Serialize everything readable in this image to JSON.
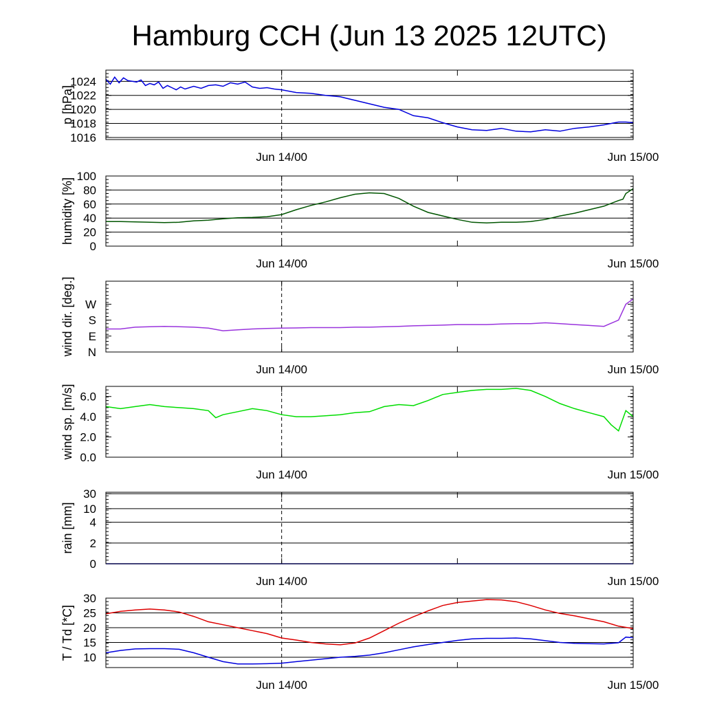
{
  "title": "Hamburg CCH (Jun 13 2025 12UTC)",
  "x_tick_labels": [
    "Jun 14/00",
    "Jun 15/00"
  ],
  "chart_data": [
    {
      "type": "line",
      "ylabel": "p [hPa]",
      "ylim": [
        1015.7,
        1025.6
      ],
      "yticks": [
        1016,
        1018,
        1020,
        1022,
        1024
      ],
      "ytick_labels": [
        "1016",
        "1018",
        "1020",
        "1022",
        "1024"
      ],
      "grid": true,
      "xlim": [
        0,
        36
      ],
      "series": [
        {
          "color": "#0000dd",
          "x": [
            0,
            0.3,
            0.6,
            0.9,
            1.2,
            1.5,
            1.8,
            2.1,
            2.4,
            2.7,
            3,
            3.3,
            3.6,
            3.9,
            4.2,
            4.5,
            4.8,
            5.1,
            5.4,
            5.7,
            6,
            6.5,
            7,
            7.5,
            8,
            8.5,
            9,
            9.5,
            10,
            10.5,
            11,
            11.5,
            12,
            13,
            14,
            15,
            16,
            17,
            18,
            19,
            20,
            21,
            22,
            23,
            24,
            25,
            26,
            27,
            28,
            29,
            30,
            31,
            32,
            33,
            34,
            35,
            35.5,
            36
          ],
          "y": [
            1024.3,
            1023.6,
            1024.6,
            1023.8,
            1024.5,
            1024.1,
            1024.0,
            1023.9,
            1024.2,
            1023.4,
            1023.7,
            1023.5,
            1023.9,
            1023.0,
            1023.4,
            1023.1,
            1022.8,
            1023.2,
            1022.9,
            1023.1,
            1023.3,
            1023.0,
            1023.4,
            1023.5,
            1023.3,
            1023.8,
            1023.6,
            1023.9,
            1023.2,
            1023.0,
            1023.1,
            1022.9,
            1022.8,
            1022.4,
            1022.3,
            1022.0,
            1021.8,
            1021.3,
            1020.8,
            1020.3,
            1020.0,
            1019.1,
            1018.8,
            1018.1,
            1017.5,
            1017.1,
            1017.0,
            1017.3,
            1016.9,
            1016.8,
            1017.1,
            1016.9,
            1017.3,
            1017.5,
            1017.8,
            1018.2,
            1018.2,
            1018.1
          ]
        }
      ]
    },
    {
      "type": "line",
      "ylabel": "humidity [%]",
      "ylim": [
        0,
        100
      ],
      "yticks": [
        0,
        20,
        40,
        60,
        80,
        100
      ],
      "ytick_labels": [
        "0",
        "20",
        "40",
        "60",
        "80",
        "100"
      ],
      "grid": true,
      "xlim": [
        0,
        36
      ],
      "series": [
        {
          "color": "#005500",
          "x": [
            0,
            1,
            2,
            3,
            4,
            5,
            6,
            7,
            8,
            9,
            10,
            11,
            12,
            13,
            14,
            15,
            16,
            17,
            18,
            19,
            20,
            21,
            22,
            23,
            24,
            25,
            26,
            27,
            28,
            29,
            30,
            31,
            32,
            33,
            34,
            34.5,
            35,
            35.3,
            35.5,
            36
          ],
          "y": [
            35,
            35,
            34.5,
            34,
            33.5,
            34,
            36,
            37,
            39,
            40.5,
            41,
            42,
            45,
            52,
            58,
            63,
            69,
            74,
            76,
            75,
            68,
            57,
            48,
            43,
            38,
            34,
            33,
            34,
            34,
            35,
            38,
            43,
            47,
            52,
            57,
            61,
            65,
            67,
            75,
            82
          ]
        }
      ]
    },
    {
      "type": "line",
      "ylabel": "wind dir. [deg.]",
      "ylim": [
        0,
        400
      ],
      "yticks": [
        0,
        90,
        180,
        270
      ],
      "ytick_labels": [
        "N",
        "E",
        "S",
        "W"
      ],
      "grid": false,
      "xlim": [
        0,
        36
      ],
      "series": [
        {
          "color": "#9933dd",
          "x": [
            0,
            1,
            2,
            3,
            4,
            5,
            6,
            7,
            8,
            9,
            10,
            11,
            12,
            13,
            14,
            15,
            16,
            17,
            18,
            19,
            20,
            21,
            22,
            23,
            24,
            25,
            26,
            27,
            28,
            29,
            30,
            31,
            32,
            33,
            34,
            35,
            35.5,
            36
          ],
          "y": [
            130,
            130,
            140,
            143,
            145,
            143,
            140,
            135,
            120,
            125,
            130,
            133,
            135,
            136,
            138,
            138,
            138,
            140,
            140,
            143,
            145,
            148,
            150,
            152,
            155,
            155,
            155,
            158,
            160,
            160,
            165,
            160,
            155,
            150,
            145,
            180,
            270,
            300
          ]
        }
      ]
    },
    {
      "type": "line",
      "ylabel": "wind sp. [m/s]",
      "ylim": [
        0,
        7.0
      ],
      "yticks": [
        0,
        2,
        4,
        6
      ],
      "ytick_labels": [
        "0.0",
        "2.0",
        "4.0",
        "6.0"
      ],
      "grid": false,
      "xlim": [
        0,
        36
      ],
      "series": [
        {
          "color": "#00dd00",
          "x": [
            0,
            1,
            2,
            3,
            4,
            5,
            6,
            7,
            7.5,
            8,
            9,
            10,
            11,
            12,
            13,
            14,
            15,
            16,
            17,
            18,
            19,
            20,
            21,
            22,
            23,
            24,
            25,
            26,
            27,
            28,
            29,
            30,
            31,
            32,
            33,
            34,
            34.5,
            35,
            35.5,
            36
          ],
          "y": [
            5.0,
            4.8,
            5.0,
            5.2,
            5.0,
            4.9,
            4.8,
            4.6,
            3.9,
            4.2,
            4.5,
            4.8,
            4.6,
            4.2,
            4.0,
            4.0,
            4.1,
            4.2,
            4.4,
            4.5,
            5.0,
            5.2,
            5.1,
            5.6,
            6.2,
            6.4,
            6.6,
            6.7,
            6.7,
            6.8,
            6.6,
            6.0,
            5.3,
            4.8,
            4.4,
            4.0,
            3.2,
            2.6,
            4.6,
            4.0
          ]
        }
      ]
    },
    {
      "type": "line",
      "ylabel": "rain [mm]",
      "ylim": [
        0,
        30
      ],
      "yticks": [
        0,
        2,
        4,
        10,
        30
      ],
      "ytick_labels": [
        "0",
        "2",
        "4",
        "10",
        "30"
      ],
      "grid": true,
      "xlim": [
        0,
        36
      ],
      "series": [
        {
          "color": "#0000dd",
          "x": [
            0,
            36
          ],
          "y": [
            0,
            0
          ]
        }
      ]
    },
    {
      "type": "line",
      "ylabel": "T / Td [*C]",
      "ylim": [
        6.5,
        30
      ],
      "yticks": [
        10,
        15,
        20,
        25,
        30
      ],
      "ytick_labels": [
        "10",
        "15",
        "20",
        "25",
        "30"
      ],
      "grid": true,
      "xlim": [
        0,
        36
      ],
      "series": [
        {
          "color": "#dd0000",
          "x": [
            0,
            1,
            2,
            3,
            4,
            5,
            6,
            7,
            8,
            9,
            10,
            11,
            12,
            13,
            14,
            15,
            16,
            17,
            18,
            19,
            20,
            21,
            22,
            23,
            24,
            25,
            26,
            27,
            28,
            29,
            30,
            31,
            32,
            33,
            34,
            35,
            36
          ],
          "y": [
            24.7,
            25.5,
            26.0,
            26.3,
            26.0,
            25.3,
            23.8,
            22.0,
            21.0,
            20.0,
            19.0,
            18.0,
            16.5,
            15.8,
            15.0,
            14.5,
            14.2,
            14.8,
            16.5,
            19.0,
            21.5,
            23.7,
            25.7,
            27.5,
            28.5,
            29.0,
            29.5,
            29.4,
            28.8,
            27.5,
            26.0,
            24.8,
            24.0,
            23.0,
            22.0,
            20.5,
            19.7
          ]
        },
        {
          "color": "#0000dd",
          "x": [
            0,
            1,
            2,
            3,
            4,
            5,
            6,
            7,
            8,
            9,
            10,
            11,
            12,
            13,
            14,
            15,
            16,
            17,
            18,
            19,
            20,
            21,
            22,
            23,
            24,
            25,
            26,
            27,
            28,
            29,
            30,
            31,
            32,
            33,
            34,
            35,
            35.5,
            36
          ],
          "y": [
            11.5,
            12.3,
            12.8,
            12.9,
            12.9,
            12.7,
            11.5,
            10.0,
            8.5,
            7.7,
            7.7,
            7.8,
            8.0,
            8.5,
            9.0,
            9.5,
            10.0,
            10.3,
            10.7,
            11.5,
            12.5,
            13.5,
            14.3,
            15.0,
            15.7,
            16.2,
            16.4,
            16.4,
            16.5,
            16.2,
            15.6,
            15.0,
            14.7,
            14.6,
            14.5,
            14.9,
            16.8,
            16.6
          ]
        }
      ]
    }
  ]
}
